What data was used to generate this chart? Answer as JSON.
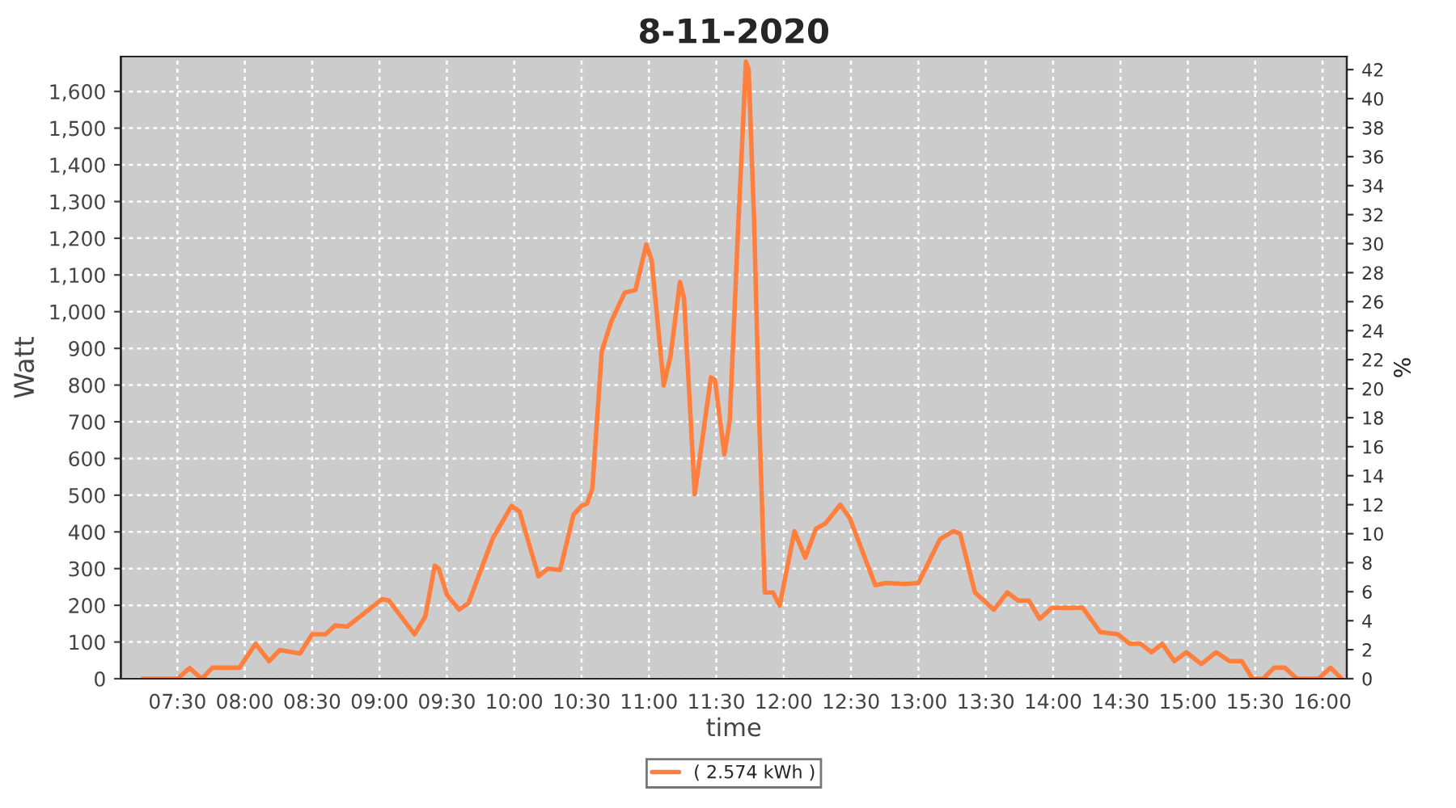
{
  "chart_data": {
    "type": "line",
    "title": "8-11-2020",
    "xlabel": "time",
    "ylabel": "Watt",
    "y2label": "%",
    "series": [
      {
        "name": "( 2.574 kWh )",
        "color": "#ff7f3f",
        "x": [
          7.24,
          7.5,
          7.59,
          7.68,
          7.76,
          7.96,
          8.08,
          8.18,
          8.26,
          8.41,
          8.5,
          8.6,
          8.67,
          8.76,
          9.02,
          9.07,
          9.26,
          9.34,
          9.41,
          9.44,
          9.5,
          9.59,
          9.66,
          9.84,
          9.98,
          10.04,
          10.18,
          10.25,
          10.34,
          10.44,
          10.5,
          10.54,
          10.58,
          10.65,
          10.72,
          10.82,
          10.9,
          10.98,
          11.02,
          11.11,
          11.16,
          11.23,
          11.26,
          11.34,
          11.46,
          11.49,
          11.56,
          11.6,
          11.66,
          11.72,
          11.74,
          11.78,
          11.82,
          11.86,
          11.92,
          11.97,
          12.08,
          12.16,
          12.24,
          12.31,
          12.42,
          12.49,
          12.68,
          12.76,
          12.9,
          13.0,
          13.16,
          13.26,
          13.31,
          13.42,
          13.56,
          13.66,
          13.74,
          13.82,
          13.9,
          13.99,
          14.22,
          14.35,
          14.48,
          14.57,
          14.65,
          14.73,
          14.81,
          14.9,
          14.99,
          15.1,
          15.21,
          15.31,
          15.4,
          15.48,
          15.56,
          15.64,
          15.72,
          15.81,
          15.97,
          16.06,
          16.14
        ],
        "values": [
          0,
          0,
          29,
          0,
          30,
          30,
          95,
          48,
          78,
          69,
          121,
          121,
          145,
          142,
          217,
          213,
          121,
          170,
          308,
          300,
          229,
          188,
          206,
          382,
          471,
          455,
          279,
          300,
          296,
          447,
          471,
          477,
          518,
          893,
          973,
          1052,
          1059,
          1183,
          1140,
          799,
          879,
          1081,
          1038,
          503,
          821,
          814,
          611,
          705,
          1211,
          1681,
          1660,
          1254,
          691,
          235,
          235,
          199,
          402,
          330,
          409,
          423,
          474,
          438,
          255,
          261,
          258,
          261,
          380,
          402,
          395,
          235,
          188,
          235,
          213,
          213,
          163,
          193,
          193,
          127,
          121,
          95,
          95,
          72,
          95,
          48,
          72,
          40,
          72,
          48,
          48,
          0,
          0,
          30,
          30,
          0,
          0,
          30,
          0
        ]
      }
    ],
    "xlim": [
      7.08,
      16.18
    ],
    "xticks": [
      {
        "value": 7.5,
        "label": "07:30"
      },
      {
        "value": 8,
        "label": "08:00"
      },
      {
        "value": 8.5,
        "label": "08:30"
      },
      {
        "value": 9,
        "label": "09:00"
      },
      {
        "value": 9.5,
        "label": "09:30"
      },
      {
        "value": 10,
        "label": "10:00"
      },
      {
        "value": 10.5,
        "label": "10:30"
      },
      {
        "value": 11,
        "label": "11:00"
      },
      {
        "value": 11.5,
        "label": "11:30"
      },
      {
        "value": 12,
        "label": "12:00"
      },
      {
        "value": 12.5,
        "label": "12:30"
      },
      {
        "value": 13,
        "label": "13:00"
      },
      {
        "value": 13.5,
        "label": "13:30"
      },
      {
        "value": 14,
        "label": "14:00"
      },
      {
        "value": 14.5,
        "label": "14:30"
      },
      {
        "value": 15,
        "label": "15:00"
      },
      {
        "value": 15.5,
        "label": "15:30"
      },
      {
        "value": 16,
        "label": "16:00"
      }
    ],
    "ylim": [
      0,
      1695
    ],
    "yticks": [
      0,
      100,
      200,
      300,
      400,
      500,
      600,
      700,
      800,
      900,
      {
        "value": 1000,
        "label": "1,000"
      },
      {
        "value": 1100,
        "label": "1,100"
      },
      {
        "value": 1200,
        "label": "1,200"
      },
      {
        "value": 1300,
        "label": "1,300"
      },
      {
        "value": 1400,
        "label": "1,400"
      },
      {
        "value": 1500,
        "label": "1,500"
      },
      {
        "value": 1600,
        "label": "1,600"
      }
    ],
    "y2lim": [
      0,
      42.9
    ],
    "y2ticks": [
      0,
      2,
      4,
      6,
      8,
      10,
      12,
      14,
      16,
      18,
      20,
      22,
      24,
      26,
      28,
      30,
      32,
      34,
      36,
      38,
      40,
      42
    ],
    "grid": true,
    "legend": "bottom",
    "line_style": "solid",
    "marker": "none"
  }
}
